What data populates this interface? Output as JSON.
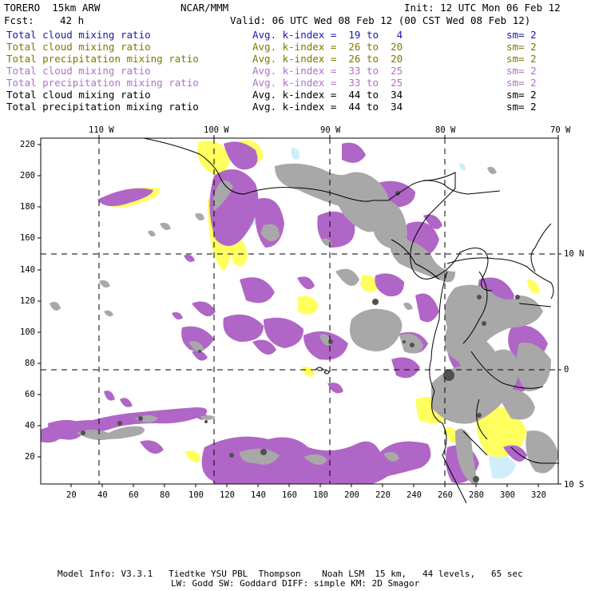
{
  "header": {
    "model": "TORERO  15km ARW",
    "org": "NCAR/MMM",
    "init": "Init: 12 UTC Mon 06 Feb 12",
    "fcst_label": "Fcst:",
    "fcst_value": "42 h",
    "valid": "Valid: 06 UTC Wed 08 Feb 12 (00 CST Wed 08 Feb 12)"
  },
  "legend": [
    {
      "field": "Total cloud mixing ratio",
      "kindex": "Avg. k-index =  19 to   4",
      "sm": "sm= 2",
      "color": "#1a1aa6"
    },
    {
      "field": "Total cloud mixing ratio",
      "kindex": "Avg. k-index =  26 to  20",
      "sm": "sm= 2",
      "color": "#7a7a00"
    },
    {
      "field": "Total precipitation mixing ratio",
      "kindex": "Avg. k-index =  26 to  20",
      "sm": "sm= 2",
      "color": "#7a7a00"
    },
    {
      "field": "Total cloud mixing ratio",
      "kindex": "Avg. k-index =  33 to  25",
      "sm": "sm= 2",
      "color": "#b070c8"
    },
    {
      "field": "Total precipitation mixing ratio",
      "kindex": "Avg. k-index =  33 to  25",
      "sm": "sm= 2",
      "color": "#b070c8"
    },
    {
      "field": "Total cloud mixing ratio",
      "kindex": "Avg. k-index =  44 to  34",
      "sm": "sm= 2",
      "color": "#000000"
    },
    {
      "field": "Total precipitation mixing ratio",
      "kindex": "Avg. k-index =  44 to  34",
      "sm": "sm= 2",
      "color": "#000000"
    }
  ],
  "map": {
    "lon_labels": [
      "110 W",
      "100 W",
      "90 W",
      "80 W",
      "70 W"
    ],
    "lat_labels": [
      "10 N",
      "0",
      "10 S"
    ],
    "y_ticks": [
      "220",
      "200",
      "180",
      "160",
      "140",
      "120",
      "100",
      "80",
      "60",
      "40",
      "20"
    ],
    "x_ticks": [
      "20",
      "40",
      "60",
      "80",
      "100",
      "120",
      "140",
      "160",
      "180",
      "200",
      "220",
      "240",
      "260",
      "280",
      "300",
      "320"
    ],
    "colors": {
      "light_cloud": "#cfeefa",
      "yellow": "#ffff60",
      "purple": "#b066c6",
      "gray": "#a8a8a8",
      "dark": "#505050",
      "coast": "#000000",
      "grid": "#000000"
    }
  },
  "footer": {
    "line1": "Model Info: V3.3.1   Tiedtke YSU PBL  Thompson    Noah LSM  15 km,   44 levels,   65 sec",
    "line2": "LW: Godd SW: Goddard DIFF: simple KM: 2D Smagor"
  }
}
